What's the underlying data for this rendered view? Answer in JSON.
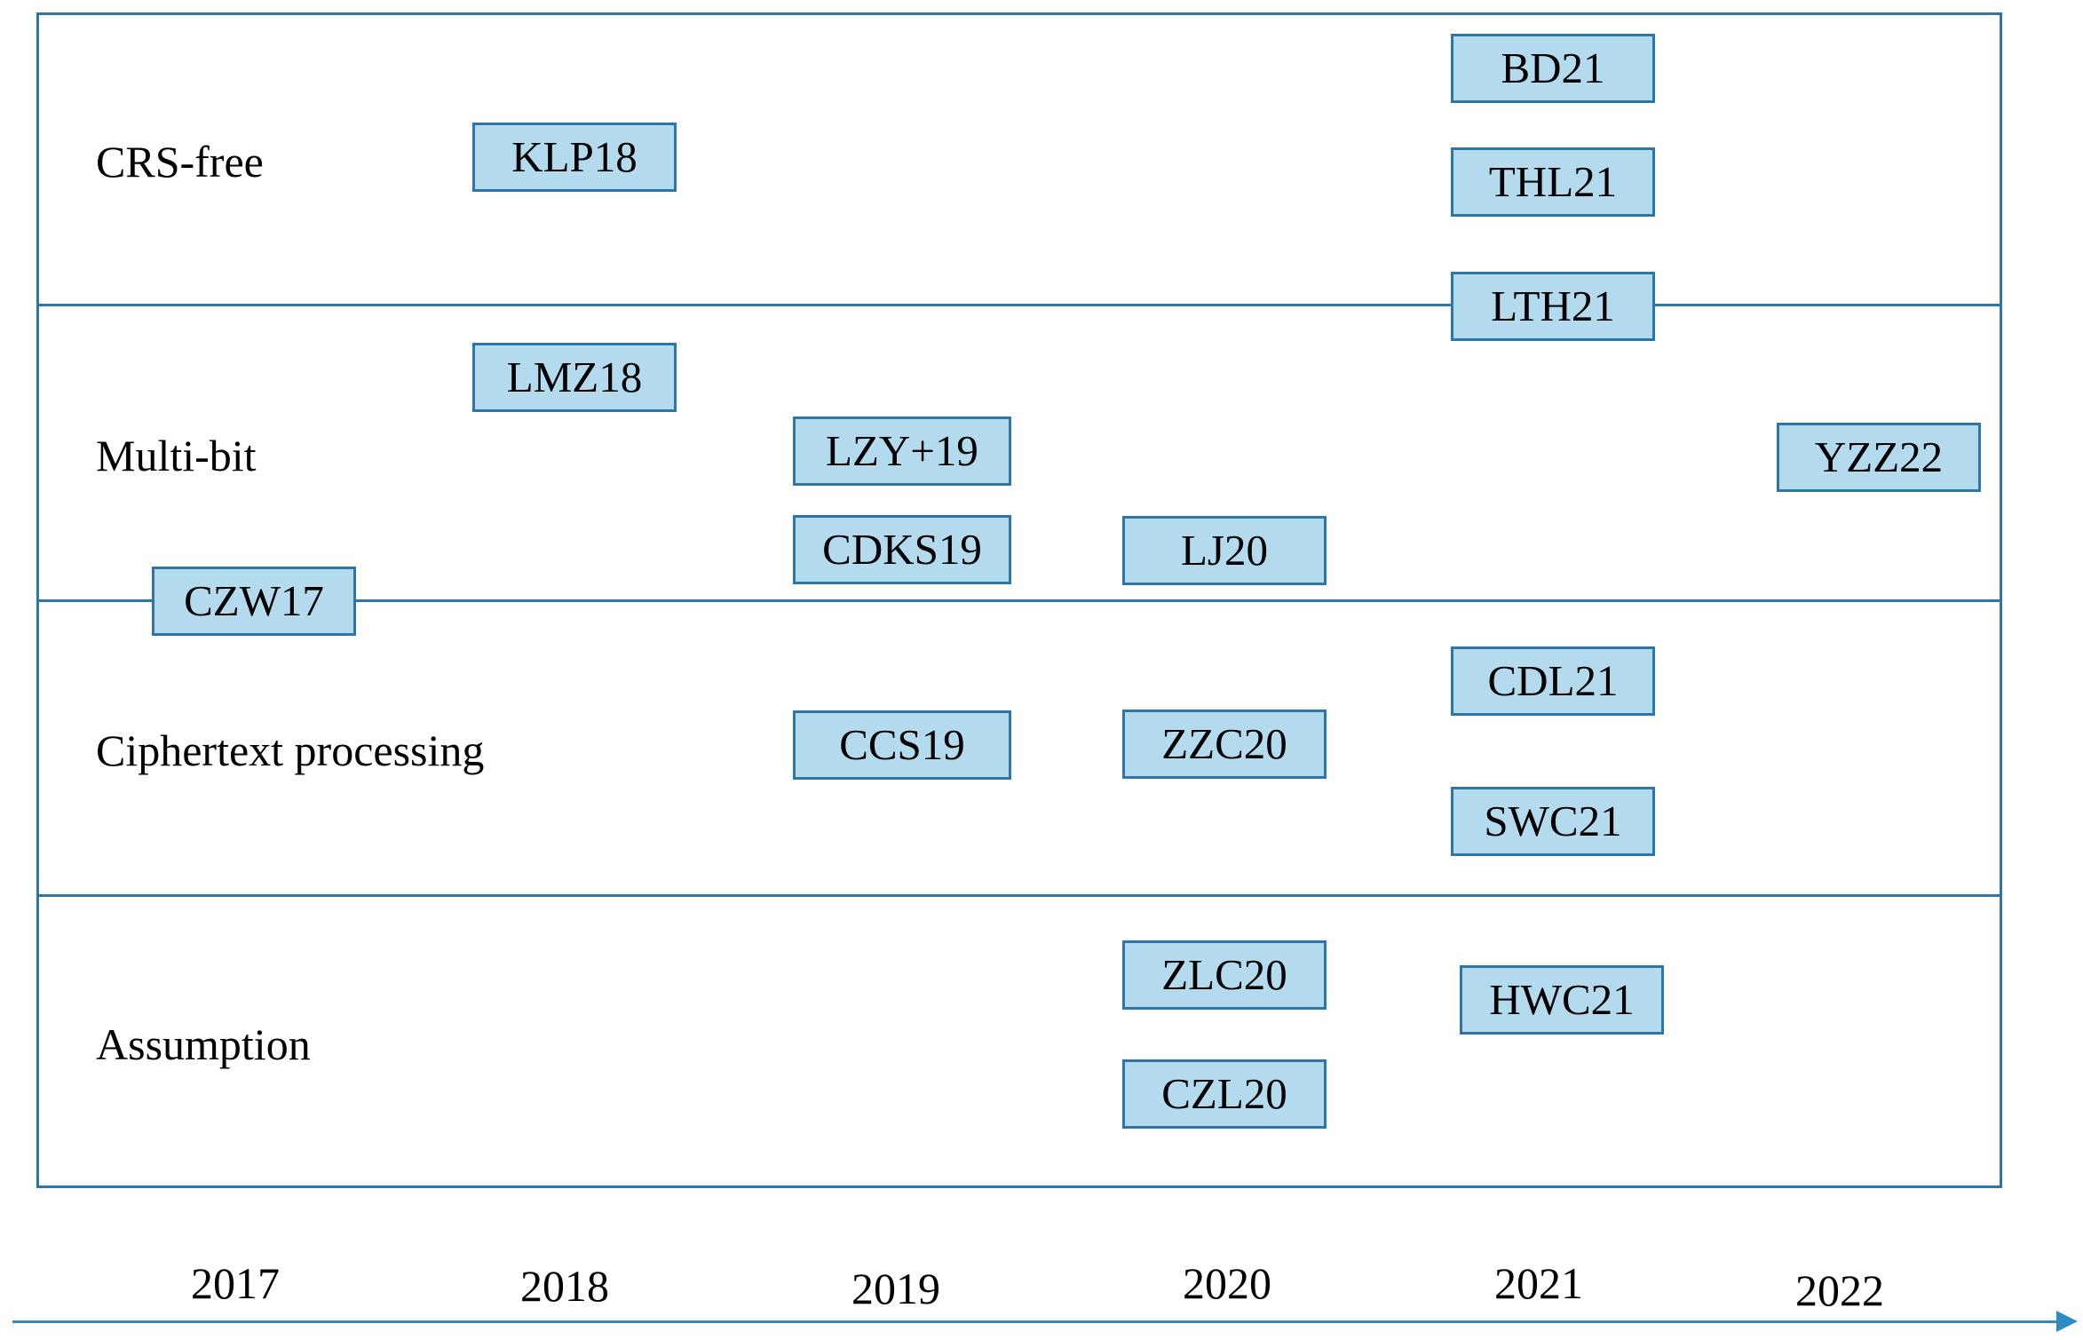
{
  "rows": {
    "crs_free": "CRS-free",
    "multi_bit": "Multi-bit",
    "ciphertext_processing": "Ciphertext processing",
    "assumption": "Assumption"
  },
  "papers": {
    "bd21": "BD21",
    "klp18": "KLP18",
    "thl21": "THL21",
    "lth21": "LTH21",
    "lmz18": "LMZ18",
    "lzy19": "LZY+19",
    "yzz22": "YZZ22",
    "cdks19": "CDKS19",
    "lj20": "LJ20",
    "czw17": "CZW17",
    "cdl21": "CDL21",
    "ccs19": "CCS19",
    "zzc20": "ZZC20",
    "swc21": "SWC21",
    "zlc20": "ZLC20",
    "hwc21": "HWC21",
    "czl20": "CZL20"
  },
  "timeline": {
    "years": [
      "2017",
      "2018",
      "2019",
      "2020",
      "2021",
      "2022"
    ]
  },
  "colors": {
    "box_fill": "#b4daee",
    "line": "#2e75a8",
    "axis": "#2e8bc0"
  }
}
